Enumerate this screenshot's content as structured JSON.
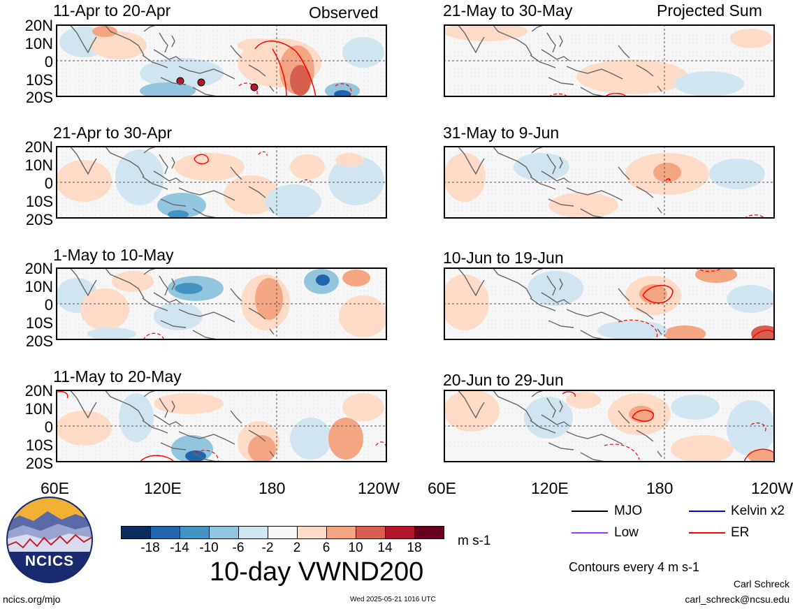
{
  "header": {
    "left_tag": "Observed",
    "right_tag": "Projected Sum"
  },
  "panels": [
    {
      "title": "11-Apr to 20-Apr"
    },
    {
      "title": "21-Apr to 30-Apr"
    },
    {
      "title": "1-May to 10-May"
    },
    {
      "title": "11-May to 20-May"
    },
    {
      "title": "21-May to 30-May"
    },
    {
      "title": "31-May to 9-Jun"
    },
    {
      "title": "10-Jun to 19-Jun"
    },
    {
      "title": "20-Jun to 29-Jun"
    }
  ],
  "lat_labels": [
    "20N",
    "10N",
    "0",
    "10S",
    "20S"
  ],
  "lon_labels": [
    "60E",
    "120E",
    "180",
    "120W"
  ],
  "colorbar": {
    "ticks": [
      "-18",
      "-14",
      "-10",
      "-6",
      "-2",
      "2",
      "6",
      "10",
      "14",
      "18"
    ],
    "units": "m s-1",
    "colors": [
      "#0b2d5e",
      "#2166ac",
      "#4393c3",
      "#92c5de",
      "#d1e5f0",
      "#f7f7f7",
      "#fddbc7",
      "#f4a582",
      "#d6604d",
      "#b2182b",
      "#67001f"
    ]
  },
  "main_title": "10-day VWND200",
  "legend": {
    "items": [
      {
        "label": "MJO",
        "color": "#000000"
      },
      {
        "label": "Kelvin x2",
        "color": "#0000ff"
      },
      {
        "label": "Low",
        "color": "#9933ff"
      },
      {
        "label": "ER",
        "color": "#ff0000"
      }
    ],
    "contours_note": "Contours every 4 m s-1"
  },
  "footer": {
    "url": "ncics.org/mjo",
    "timestamp": "Wed 2025-05-21 1016 UTC",
    "author": "Carl Schreck",
    "email": "carl_schreck@ncsu.edu"
  },
  "logo_text": "NCICS"
}
